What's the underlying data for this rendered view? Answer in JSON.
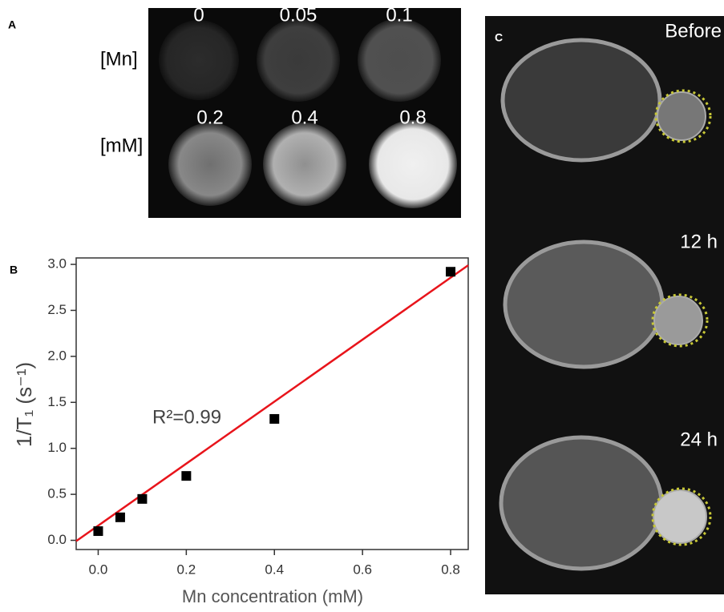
{
  "panel_a": {
    "label": "A",
    "row_labels": [
      "[Mn]",
      "[mM]"
    ],
    "concentrations": [
      "0",
      "0.05",
      "0.1",
      "0.2",
      "0.4",
      "0.8"
    ]
  },
  "chart_data": {
    "type": "scatter",
    "panel_label": "B",
    "xlabel": "Mn concentration (mM)",
    "ylabel": "1/T₁ (s⁻¹)",
    "annotation": "R²=0.99",
    "x": [
      0,
      0.05,
      0.1,
      0.2,
      0.4,
      0.8
    ],
    "series": [
      {
        "values": [
          0.1,
          0.25,
          0.45,
          0.7,
          1.32,
          2.92
        ],
        "color": "#000000"
      }
    ],
    "fit": {
      "slope": 3.37,
      "intercept": 0.16,
      "color": "#e8141b"
    },
    "xlim": [
      -0.05,
      0.84
    ],
    "ylim": [
      -0.1,
      3.07
    ],
    "xticks": [
      {
        "value": 0,
        "label": "0.0"
      },
      0.2,
      0.4,
      0.6,
      0.8
    ],
    "yticks": [
      {
        "value": 0,
        "label": "0.0"
      },
      0.5,
      {
        "value": 1,
        "label": "1.0"
      },
      1.5,
      {
        "value": 2,
        "label": "2.0"
      },
      2.5,
      {
        "value": 3,
        "label": "3.0"
      }
    ]
  },
  "panel_c": {
    "label": "C",
    "time_labels": [
      "Before",
      "12 h",
      "24 h"
    ]
  }
}
